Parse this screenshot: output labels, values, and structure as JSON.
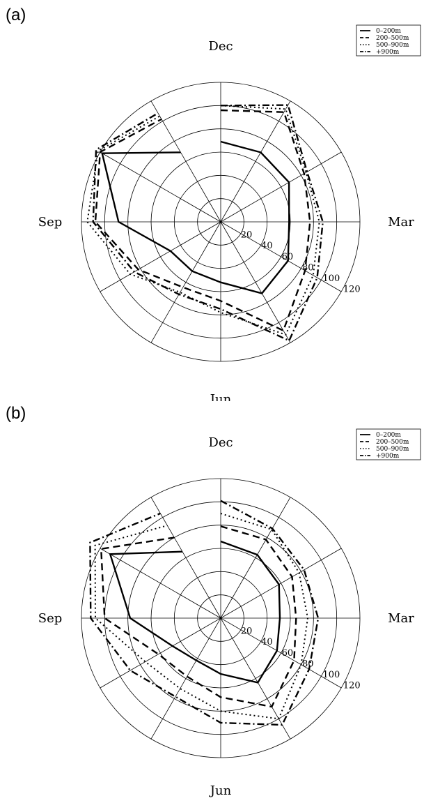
{
  "chart_data": [
    {
      "panel_label": "(a)",
      "type": "radar",
      "month_labels": {
        "top": "Dec",
        "right": "Mar",
        "bottom": "Jun",
        "left": "Sep"
      },
      "radial_ticks": [
        "20",
        "40",
        "60",
        "80",
        "100",
        "120"
      ],
      "rlim": [
        0,
        120
      ],
      "legend_position": "top-right",
      "angles_deg": [
        0,
        30,
        60,
        90,
        120,
        150,
        180,
        210,
        240,
        270,
        300,
        330
      ],
      "series": [
        {
          "name": "0–200m",
          "style": "solid",
          "values": [
            69,
            69,
            68,
            59,
            67,
            71,
            52,
            49,
            50,
            88,
            118,
            69
          ]
        },
        {
          "name": "200–500m",
          "style": "dashed",
          "values": [
            96,
            109,
            83,
            77,
            84,
            108,
            68,
            65,
            82,
            108,
            120,
            102
          ]
        },
        {
          "name": "500–900m",
          "style": "dotted",
          "values": [
            100,
            112,
            85,
            85,
            92,
            112,
            78,
            70,
            90,
            115,
            122,
            105
          ]
        },
        {
          "name": "+900m",
          "style": "dashdot",
          "values": [
            100,
            116,
            86,
            88,
            96,
            118,
            75,
            72,
            86,
            110,
            124,
            108
          ]
        }
      ]
    },
    {
      "panel_label": "(b)",
      "type": "radar",
      "month_labels": {
        "top": "Dec",
        "right": "Mar",
        "bottom": "Jun",
        "left": "Sep"
      },
      "radial_ticks": [
        "20",
        "40",
        "60",
        "80",
        "100",
        "120"
      ],
      "rlim": [
        0,
        120
      ],
      "legend_position": "top-right",
      "angles_deg": [
        0,
        30,
        60,
        90,
        120,
        150,
        180,
        210,
        240,
        270,
        300,
        330
      ],
      "series": [
        {
          "name": "0–200m",
          "style": "solid",
          "values": [
            66,
            63,
            58,
            51,
            56,
            64,
            48,
            42,
            48,
            78,
            110,
            66
          ]
        },
        {
          "name": "200–500m",
          "style": "dashed",
          "values": [
            79,
            78,
            71,
            65,
            73,
            88,
            68,
            58,
            62,
            100,
            119,
            80
          ]
        },
        {
          "name": "500–900m",
          "style": "dotted",
          "values": [
            90,
            88,
            78,
            75,
            80,
            100,
            80,
            70,
            75,
            108,
            125,
            92
          ]
        },
        {
          "name": "+900m",
          "style": "dashdot",
          "values": [
            101,
            89,
            83,
            84,
            88,
            106,
            90,
            78,
            90,
            112,
            130,
            104
          ]
        }
      ]
    }
  ]
}
